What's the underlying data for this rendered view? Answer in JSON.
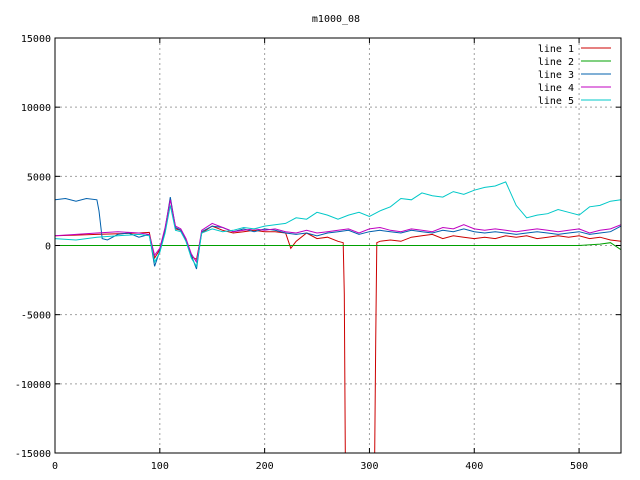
{
  "chart_data": {
    "type": "line",
    "title": "m1000_08",
    "xlabel": "",
    "ylabel": "",
    "xlim": [
      0,
      540
    ],
    "ylim": [
      -15000,
      15000
    ],
    "x_ticks": [
      0,
      100,
      200,
      300,
      400,
      500
    ],
    "y_ticks": [
      -15000,
      -10000,
      -5000,
      0,
      5000,
      10000,
      15000
    ],
    "grid": true,
    "legend_position": "top-right",
    "series": [
      {
        "name": "line 1",
        "color": "#cc0000",
        "points": [
          [
            0,
            700
          ],
          [
            20,
            750
          ],
          [
            40,
            800
          ],
          [
            60,
            850
          ],
          [
            80,
            900
          ],
          [
            90,
            950
          ],
          [
            95,
            -900
          ],
          [
            100,
            -300
          ],
          [
            105,
            1000
          ],
          [
            110,
            3400
          ],
          [
            115,
            1200
          ],
          [
            120,
            1100
          ],
          [
            125,
            400
          ],
          [
            130,
            -800
          ],
          [
            135,
            -1000
          ],
          [
            140,
            900
          ],
          [
            150,
            1400
          ],
          [
            160,
            1100
          ],
          [
            170,
            900
          ],
          [
            180,
            1000
          ],
          [
            190,
            1100
          ],
          [
            200,
            1000
          ],
          [
            210,
            1000
          ],
          [
            220,
            900
          ],
          [
            225,
            -200
          ],
          [
            230,
            300
          ],
          [
            240,
            900
          ],
          [
            250,
            500
          ],
          [
            260,
            600
          ],
          [
            270,
            300
          ],
          [
            275,
            200
          ],
          [
            276,
            -3500
          ],
          [
            277,
            -15000
          ],
          [
            278,
            -15000
          ],
          [
            290,
            -15000
          ],
          [
            300,
            -15000
          ],
          [
            305,
            -15000
          ],
          [
            306,
            -7000
          ],
          [
            307,
            200
          ],
          [
            310,
            300
          ],
          [
            320,
            400
          ],
          [
            330,
            300
          ],
          [
            340,
            600
          ],
          [
            350,
            700
          ],
          [
            360,
            800
          ],
          [
            370,
            500
          ],
          [
            380,
            700
          ],
          [
            390,
            600
          ],
          [
            400,
            500
          ],
          [
            410,
            600
          ],
          [
            420,
            500
          ],
          [
            430,
            700
          ],
          [
            440,
            600
          ],
          [
            450,
            700
          ],
          [
            460,
            500
          ],
          [
            470,
            600
          ],
          [
            480,
            700
          ],
          [
            490,
            600
          ],
          [
            500,
            700
          ],
          [
            510,
            500
          ],
          [
            520,
            600
          ],
          [
            530,
            400
          ],
          [
            540,
            300
          ]
        ]
      },
      {
        "name": "line 2",
        "color": "#00a000",
        "points": [
          [
            0,
            0
          ],
          [
            100,
            0
          ],
          [
            200,
            0
          ],
          [
            300,
            0
          ],
          [
            400,
            0
          ],
          [
            500,
            0
          ],
          [
            520,
            100
          ],
          [
            530,
            200
          ],
          [
            540,
            -300
          ]
        ]
      },
      {
        "name": "line 3",
        "color": "#0060ad",
        "points": [
          [
            0,
            3300
          ],
          [
            10,
            3400
          ],
          [
            20,
            3200
          ],
          [
            30,
            3400
          ],
          [
            40,
            3300
          ],
          [
            42,
            2500
          ],
          [
            45,
            500
          ],
          [
            50,
            400
          ],
          [
            60,
            800
          ],
          [
            70,
            900
          ],
          [
            80,
            600
          ],
          [
            90,
            800
          ],
          [
            95,
            -1500
          ],
          [
            100,
            -400
          ],
          [
            105,
            1200
          ],
          [
            110,
            3500
          ],
          [
            115,
            1300
          ],
          [
            120,
            1100
          ],
          [
            125,
            300
          ],
          [
            130,
            -700
          ],
          [
            135,
            -1700
          ],
          [
            140,
            1000
          ],
          [
            150,
            1400
          ],
          [
            160,
            1300
          ],
          [
            170,
            1000
          ],
          [
            180,
            1200
          ],
          [
            190,
            1000
          ],
          [
            200,
            1200
          ],
          [
            210,
            1100
          ],
          [
            220,
            900
          ],
          [
            230,
            800
          ],
          [
            240,
            900
          ],
          [
            250,
            700
          ],
          [
            260,
            900
          ],
          [
            270,
            1000
          ],
          [
            280,
            1100
          ],
          [
            290,
            800
          ],
          [
            300,
            1000
          ],
          [
            310,
            1100
          ],
          [
            320,
            1000
          ],
          [
            330,
            900
          ],
          [
            340,
            1100
          ],
          [
            350,
            1000
          ],
          [
            360,
            900
          ],
          [
            370,
            1100
          ],
          [
            380,
            1000
          ],
          [
            390,
            1200
          ],
          [
            400,
            1000
          ],
          [
            410,
            900
          ],
          [
            420,
            1000
          ],
          [
            430,
            900
          ],
          [
            440,
            800
          ],
          [
            450,
            900
          ],
          [
            460,
            1000
          ],
          [
            470,
            900
          ],
          [
            480,
            800
          ],
          [
            490,
            900
          ],
          [
            500,
            1000
          ],
          [
            510,
            800
          ],
          [
            520,
            900
          ],
          [
            530,
            1000
          ],
          [
            540,
            1400
          ]
        ]
      },
      {
        "name": "line 4",
        "color": "#c000c0",
        "points": [
          [
            0,
            700
          ],
          [
            20,
            800
          ],
          [
            40,
            900
          ],
          [
            60,
            1000
          ],
          [
            80,
            900
          ],
          [
            90,
            800
          ],
          [
            95,
            -700
          ],
          [
            100,
            -200
          ],
          [
            105,
            1300
          ],
          [
            110,
            3300
          ],
          [
            115,
            1400
          ],
          [
            120,
            1200
          ],
          [
            125,
            500
          ],
          [
            130,
            -600
          ],
          [
            135,
            -1200
          ],
          [
            140,
            1100
          ],
          [
            150,
            1600
          ],
          [
            160,
            1300
          ],
          [
            170,
            1000
          ],
          [
            180,
            1100
          ],
          [
            190,
            1200
          ],
          [
            200,
            1100
          ],
          [
            210,
            1200
          ],
          [
            220,
            1000
          ],
          [
            230,
            900
          ],
          [
            240,
            1100
          ],
          [
            250,
            900
          ],
          [
            260,
            1000
          ],
          [
            270,
            1100
          ],
          [
            280,
            1200
          ],
          [
            290,
            900
          ],
          [
            300,
            1200
          ],
          [
            310,
            1300
          ],
          [
            320,
            1100
          ],
          [
            330,
            1000
          ],
          [
            340,
            1200
          ],
          [
            350,
            1100
          ],
          [
            360,
            1000
          ],
          [
            370,
            1300
          ],
          [
            380,
            1200
          ],
          [
            390,
            1500
          ],
          [
            400,
            1200
          ],
          [
            410,
            1100
          ],
          [
            420,
            1200
          ],
          [
            430,
            1100
          ],
          [
            440,
            1000
          ],
          [
            450,
            1100
          ],
          [
            460,
            1200
          ],
          [
            470,
            1100
          ],
          [
            480,
            1000
          ],
          [
            490,
            1100
          ],
          [
            500,
            1200
          ],
          [
            510,
            900
          ],
          [
            520,
            1100
          ],
          [
            530,
            1200
          ],
          [
            540,
            1500
          ]
        ]
      },
      {
        "name": "line 5",
        "color": "#00c8c8",
        "points": [
          [
            0,
            500
          ],
          [
            20,
            400
          ],
          [
            40,
            600
          ],
          [
            60,
            700
          ],
          [
            80,
            800
          ],
          [
            90,
            700
          ],
          [
            95,
            -1200
          ],
          [
            100,
            -500
          ],
          [
            105,
            900
          ],
          [
            110,
            2900
          ],
          [
            115,
            1100
          ],
          [
            120,
            1000
          ],
          [
            125,
            300
          ],
          [
            130,
            -900
          ],
          [
            135,
            -1500
          ],
          [
            140,
            900
          ],
          [
            150,
            1200
          ],
          [
            160,
            1000
          ],
          [
            170,
            1100
          ],
          [
            180,
            1300
          ],
          [
            190,
            1200
          ],
          [
            200,
            1400
          ],
          [
            210,
            1500
          ],
          [
            220,
            1600
          ],
          [
            230,
            2000
          ],
          [
            240,
            1900
          ],
          [
            250,
            2400
          ],
          [
            260,
            2200
          ],
          [
            270,
            1900
          ],
          [
            280,
            2200
          ],
          [
            290,
            2400
          ],
          [
            300,
            2100
          ],
          [
            310,
            2500
          ],
          [
            320,
            2800
          ],
          [
            330,
            3400
          ],
          [
            340,
            3300
          ],
          [
            350,
            3800
          ],
          [
            360,
            3600
          ],
          [
            370,
            3500
          ],
          [
            380,
            3900
          ],
          [
            390,
            3700
          ],
          [
            400,
            4000
          ],
          [
            410,
            4200
          ],
          [
            420,
            4300
          ],
          [
            430,
            4600
          ],
          [
            440,
            2900
          ],
          [
            450,
            2000
          ],
          [
            460,
            2200
          ],
          [
            470,
            2300
          ],
          [
            480,
            2600
          ],
          [
            490,
            2400
          ],
          [
            500,
            2200
          ],
          [
            510,
            2800
          ],
          [
            520,
            2900
          ],
          [
            530,
            3200
          ],
          [
            540,
            3300
          ]
        ]
      }
    ]
  }
}
